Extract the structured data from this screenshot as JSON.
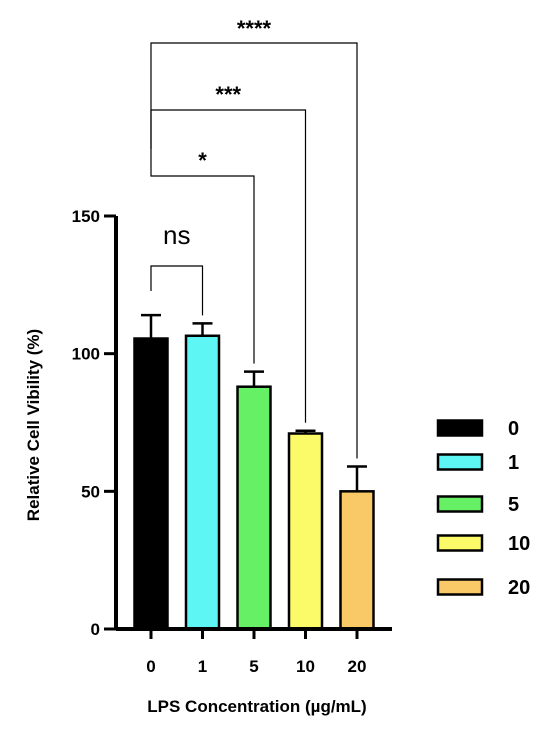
{
  "chart_data": {
    "type": "bar",
    "title": "",
    "xlabel": "LPS Concentration (µg/mL)",
    "ylabel": "Relative Cell Vibility (%)",
    "ylim": [
      0,
      150
    ],
    "yticks": [
      "0",
      "50",
      "100",
      "150"
    ],
    "categories": [
      "0",
      "1",
      "5",
      "10",
      "20"
    ],
    "values": [
      105.5,
      106.5,
      88,
      71,
      50
    ],
    "errors": [
      8.5,
      4.5,
      5.5,
      1,
      9
    ],
    "colors": [
      "#000000",
      "#5ef5f5",
      "#66f066",
      "#fbfb6a",
      "#f9c867"
    ],
    "legend": {
      "placement": "right",
      "entries": [
        "0",
        "1",
        "5",
        "10",
        "20"
      ]
    },
    "grid": false,
    "comparisons": [
      {
        "from": "0",
        "to": "1",
        "label": "ns"
      },
      {
        "from": "0",
        "to": "5",
        "label": "*"
      },
      {
        "from": "0",
        "to": "10",
        "label": "***"
      },
      {
        "from": "0",
        "to": "20",
        "label": "****"
      }
    ]
  }
}
